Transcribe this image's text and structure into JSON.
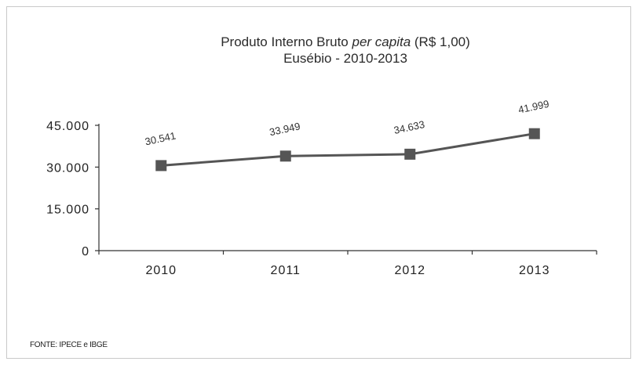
{
  "chart_data": {
    "type": "line",
    "title": "Produto Interno Bruto ",
    "title_italic": "per capita",
    "title_suffix": " (R$ 1,00)",
    "subtitle": "Eusébio - 2010-2013",
    "categories": [
      "2010",
      "2011",
      "2012",
      "2013"
    ],
    "series": [
      {
        "values": [
          30541,
          33949,
          34633,
          41999
        ],
        "labels": [
          "30.541",
          "33.949",
          "34.633",
          "41.999"
        ],
        "color": "#555555",
        "marker": "square"
      }
    ],
    "ylim": [
      0,
      45000
    ],
    "yticks": [
      0,
      15000,
      30000,
      45000
    ],
    "ytick_labels": [
      "0",
      "15.000",
      "30.000",
      "45.000"
    ],
    "grid": false,
    "legend": "none",
    "xlabel": "",
    "ylabel": ""
  },
  "source": "FONTE: IPECE e IBGE"
}
